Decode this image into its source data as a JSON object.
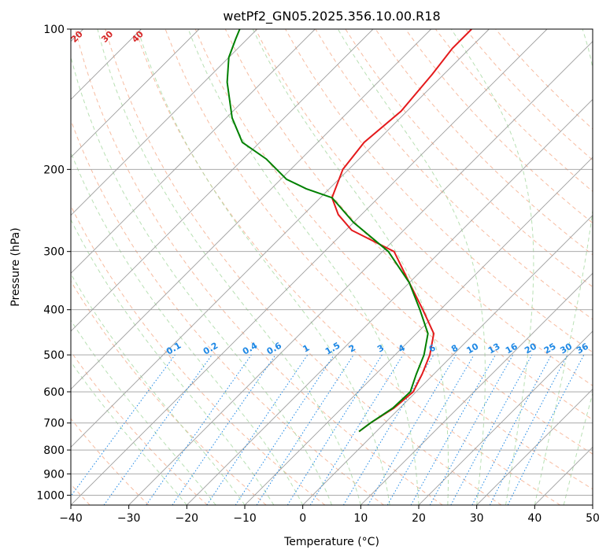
{
  "chart_data": {
    "type": "line",
    "title": "wetPf2_GN05.2025.356.10.00.R18",
    "xlabel": "Temperature (°C)",
    "ylabel": "Pressure (hPa)",
    "xlim": [
      -40,
      50
    ],
    "ylim": [
      1050,
      100
    ],
    "y_scale": "log",
    "skew": true,
    "grid": true,
    "x_ticks": [
      "−40",
      "−30",
      "−20",
      "−10",
      "0",
      "10",
      "20",
      "30",
      "40",
      "50"
    ],
    "x_tick_values": [
      -40,
      -30,
      -20,
      -10,
      0,
      10,
      20,
      30,
      40,
      50
    ],
    "y_ticks": [
      "100",
      "200",
      "300",
      "400",
      "500",
      "600",
      "700",
      "800",
      "900",
      "1000"
    ],
    "y_tick_values": [
      100,
      200,
      300,
      400,
      500,
      600,
      700,
      800,
      900,
      1000
    ],
    "series": [
      {
        "color": "#e41a1c",
        "points": [
          [
            -3,
            730
          ],
          [
            -2.5,
            700
          ],
          [
            -1,
            650
          ],
          [
            -0.5,
            600
          ],
          [
            -2,
            550
          ],
          [
            -4,
            500
          ],
          [
            -7,
            450
          ],
          [
            -13,
            400
          ],
          [
            -20,
            350
          ],
          [
            -28,
            300
          ],
          [
            -39,
            270
          ],
          [
            -44,
            250
          ],
          [
            -48,
            230
          ],
          [
            -51,
            200
          ],
          [
            -52,
            175
          ],
          [
            -51,
            150
          ],
          [
            -52,
            125
          ],
          [
            -53,
            110
          ],
          [
            -53,
            100
          ]
        ]
      },
      {
        "color": "#008000",
        "points": [
          [
            -3,
            730
          ],
          [
            -2.5,
            700
          ],
          [
            -1.2,
            650
          ],
          [
            -1,
            600
          ],
          [
            -3,
            550
          ],
          [
            -5,
            500
          ],
          [
            -8,
            450
          ],
          [
            -13.5,
            400
          ],
          [
            -20,
            350
          ],
          [
            -29,
            300
          ],
          [
            -40,
            260
          ],
          [
            -48,
            230
          ],
          [
            -54,
            220
          ],
          [
            -59,
            210
          ],
          [
            -66,
            190
          ],
          [
            -73,
            175
          ],
          [
            -79,
            155
          ],
          [
            -86,
            130
          ],
          [
            -90,
            115
          ],
          [
            -92,
            105
          ],
          [
            -93,
            100
          ]
        ]
      }
    ],
    "annotations": {
      "dry_adiabats": [
        "-100",
        "-90",
        "-80",
        "-70",
        "-60",
        "-50",
        "-40",
        "-30",
        "-20",
        "-10",
        "0",
        "10",
        "20",
        "30",
        "40"
      ],
      "mixing_ratios": [
        "0.1",
        "0.2",
        "0.4",
        "0.6",
        "1",
        "1.5",
        "2",
        "3",
        "4",
        "6",
        "8",
        "10",
        "13",
        "16",
        "20",
        "25",
        "30",
        "36"
      ]
    },
    "colors": {
      "temperature": "#e41a1c",
      "dewpoint": "#008000",
      "dry_adiabat": "#f4a582",
      "moist_adiabat": "#a6d8a0",
      "mixing_ratio": "#1e88e5",
      "isotherm": "#9e9e9e",
      "isobar": "#9e9e9e"
    }
  }
}
